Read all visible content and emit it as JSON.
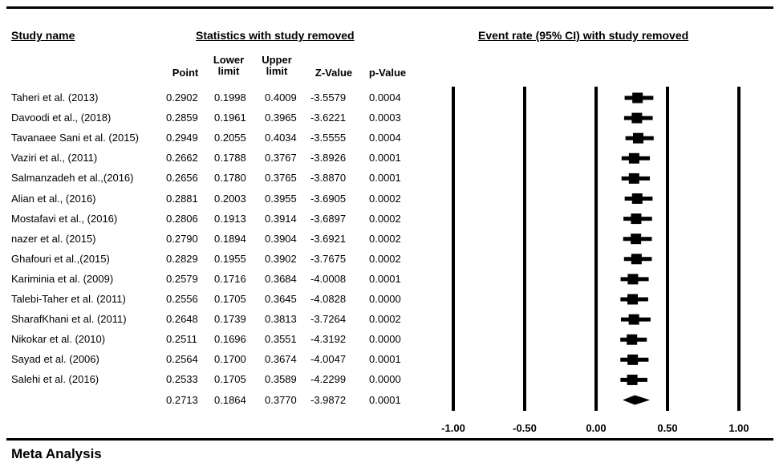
{
  "headers": {
    "study_name": "Study name",
    "statistics": "Statistics with study removed",
    "forest": "Event rate (95% CI) with study removed",
    "columns": [
      "Point",
      "Lower limit",
      "Upper limit",
      "Z-Value",
      "p-Value"
    ]
  },
  "footer": "Meta Analysis",
  "chart_data": {
    "type": "forest",
    "xlim": [
      -1.0,
      1.0
    ],
    "x_ticks": [
      "-1.00",
      "-0.50",
      "0.00",
      "0.50",
      "1.00"
    ],
    "x_tick_values": [
      -1.0,
      -0.5,
      0.0,
      0.5,
      1.0
    ],
    "studies": [
      {
        "name": "Taheri et al. (2013)",
        "point": "0.2902",
        "lower": "0.1998",
        "upper": "0.4009",
        "z": "-3.5579",
        "p": "0.0004"
      },
      {
        "name": "Davoodi et al., (2018)",
        "point": "0.2859",
        "lower": "0.1961",
        "upper": "0.3965",
        "z": "-3.6221",
        "p": "0.0003"
      },
      {
        "name": "Tavanaee Sani et al. (2015)",
        "point": "0.2949",
        "lower": "0.2055",
        "upper": "0.4034",
        "z": "-3.5555",
        "p": "0.0004"
      },
      {
        "name": "Vaziri et al., (2011)",
        "point": "0.2662",
        "lower": "0.1788",
        "upper": "0.3767",
        "z": "-3.8926",
        "p": "0.0001"
      },
      {
        "name": "Salmanzadeh et al.,(2016)",
        "point": "0.2656",
        "lower": "0.1780",
        "upper": "0.3765",
        "z": "-3.8870",
        "p": "0.0001"
      },
      {
        "name": "Alian et al., (2016)",
        "point": "0.2881",
        "lower": "0.2003",
        "upper": "0.3955",
        "z": "-3.6905",
        "p": "0.0002"
      },
      {
        "name": "Mostafavi et al., (2016)",
        "point": "0.2806",
        "lower": "0.1913",
        "upper": "0.3914",
        "z": "-3.6897",
        "p": "0.0002"
      },
      {
        "name": "nazer et al. (2015)",
        "point": "0.2790",
        "lower": "0.1894",
        "upper": "0.3904",
        "z": "-3.6921",
        "p": "0.0002"
      },
      {
        "name": "Ghafouri et al.,(2015)",
        "point": "0.2829",
        "lower": "0.1955",
        "upper": "0.3902",
        "z": "-3.7675",
        "p": "0.0002"
      },
      {
        "name": "Kariminia et al.  (2009)",
        "point": "0.2579",
        "lower": "0.1716",
        "upper": "0.3684",
        "z": "-4.0008",
        "p": "0.0001"
      },
      {
        "name": "Talebi-Taher et al. (2011)",
        "point": "0.2556",
        "lower": "0.1705",
        "upper": "0.3645",
        "z": "-4.0828",
        "p": "0.0000"
      },
      {
        "name": "SharafKhani et al. (2011)",
        "point": "0.2648",
        "lower": "0.1739",
        "upper": "0.3813",
        "z": "-3.7264",
        "p": "0.0002"
      },
      {
        "name": "Nikokar et al. (2010)",
        "point": "0.2511",
        "lower": "0.1696",
        "upper": "0.3551",
        "z": "-4.3192",
        "p": "0.0000"
      },
      {
        "name": "Sayad et al. (2006)",
        "point": "0.2564",
        "lower": "0.1700",
        "upper": "0.3674",
        "z": "-4.0047",
        "p": "0.0001"
      },
      {
        "name": "Salehi et al. (2016)",
        "point": "0.2533",
        "lower": "0.1705",
        "upper": "0.3589",
        "z": "-4.2299",
        "p": "0.0000"
      }
    ],
    "summary": {
      "name": "",
      "point": "0.2713",
      "lower": "0.1864",
      "upper": "0.3770",
      "z": "-3.9872",
      "p": "0.0001"
    }
  }
}
